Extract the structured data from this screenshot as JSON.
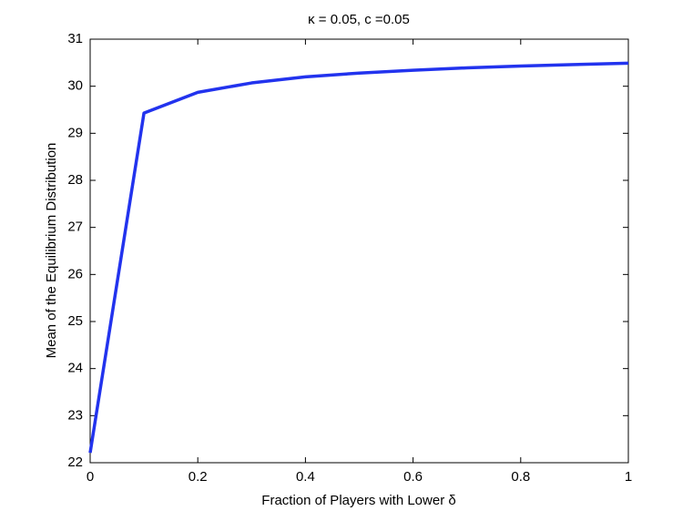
{
  "chart_data": {
    "type": "line",
    "title": "κ = 0.05, c =0.05",
    "x_label": "Fraction of Players with Lower δ",
    "y_label": "Mean of the Equilibrium Distribution",
    "x": [
      0,
      0.1,
      0.2,
      0.3,
      0.4,
      0.5,
      0.6,
      0.7,
      0.8,
      0.9,
      1
    ],
    "series": [
      {
        "color": "#2233ee",
        "values": [
          22.21,
          29.43,
          29.87,
          30.07,
          30.2,
          30.28,
          30.34,
          30.39,
          30.43,
          30.46,
          30.49
        ]
      }
    ],
    "xlim": [
      0,
      1
    ],
    "xticks": [
      0,
      0.2,
      0.4,
      0.6,
      0.8,
      1
    ],
    "ylim": [
      22,
      31
    ],
    "yticks": [
      22,
      23,
      24,
      25,
      26,
      27,
      28,
      29,
      30,
      31
    ],
    "grid": false
  }
}
